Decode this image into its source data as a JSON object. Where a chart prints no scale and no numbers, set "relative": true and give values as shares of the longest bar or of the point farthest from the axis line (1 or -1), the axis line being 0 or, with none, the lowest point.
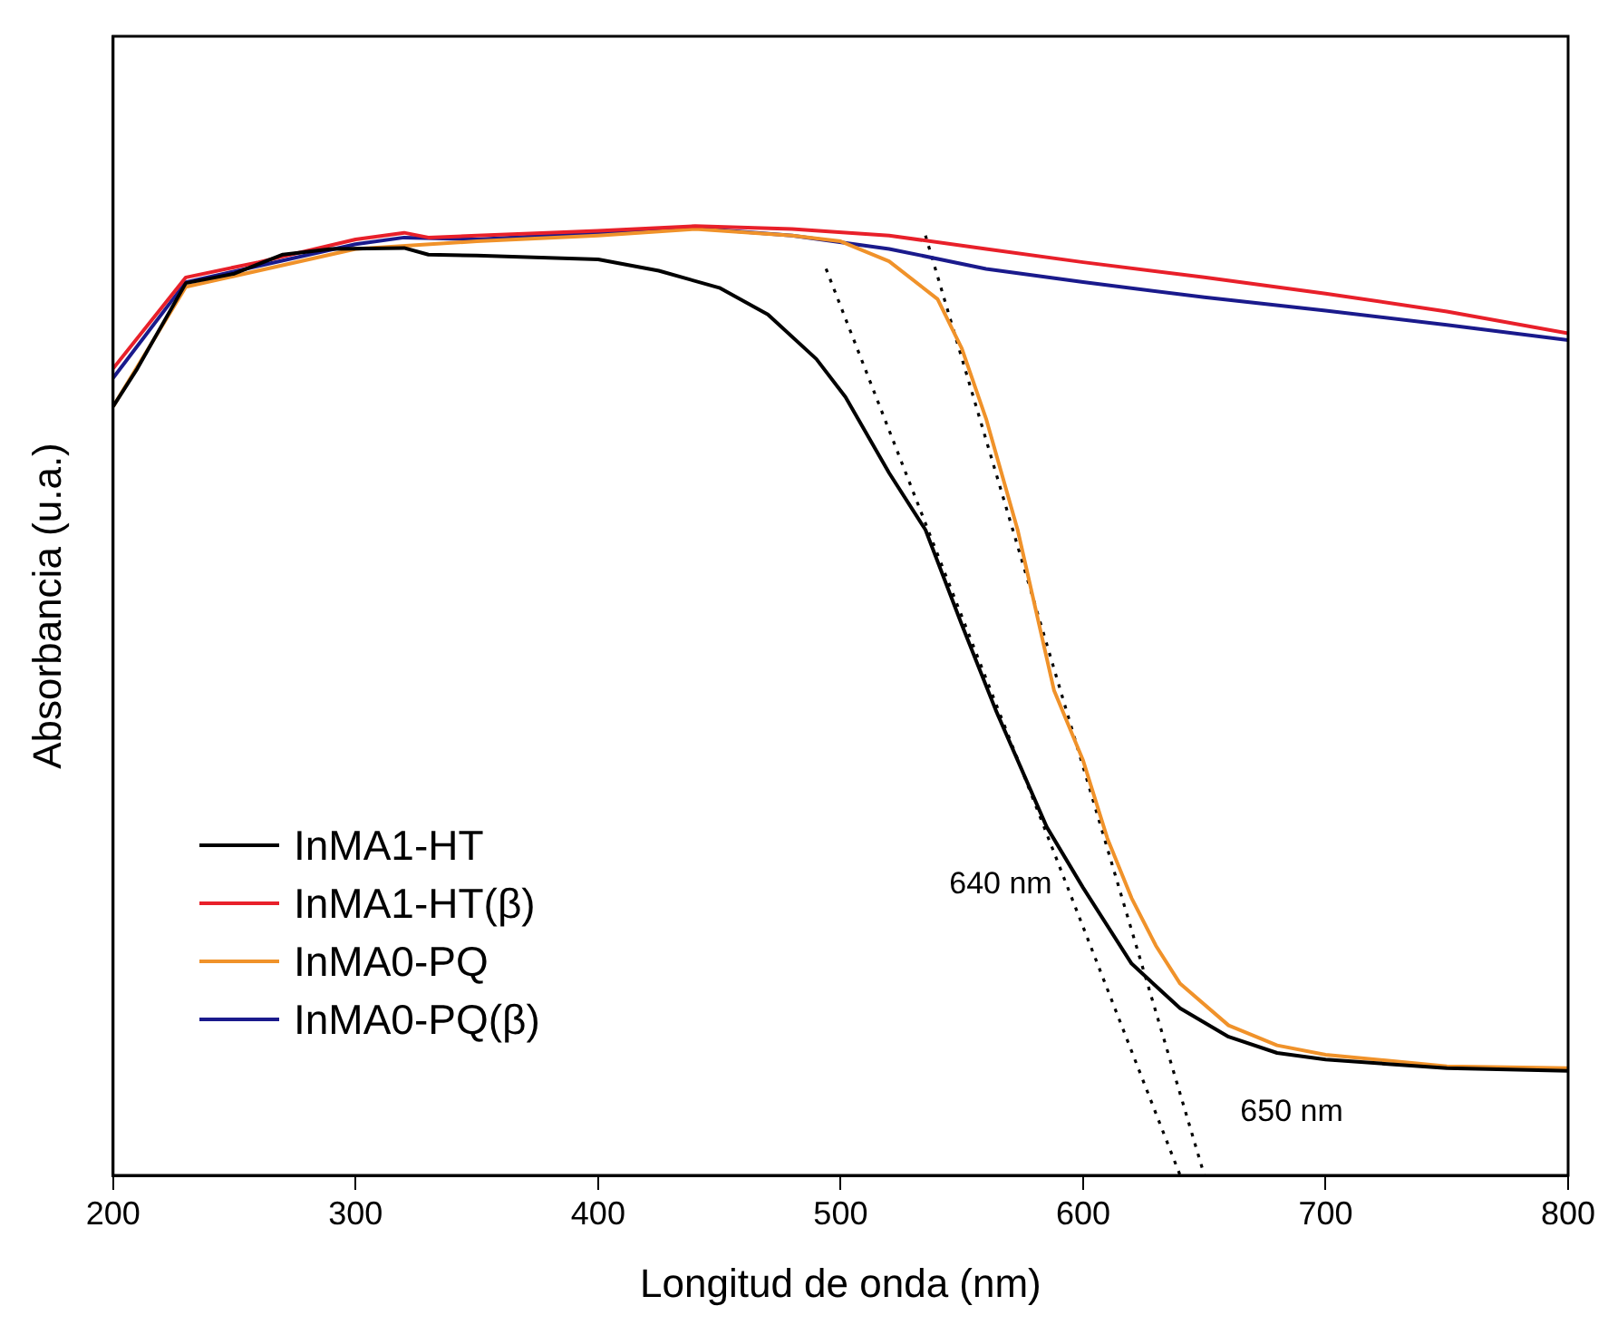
{
  "chart_data": {
    "type": "line",
    "xlabel": "Longitud de onda (nm)",
    "ylabel": "Absorbancia (u.a.)",
    "relative": true,
    "xlim": [
      200,
      800
    ],
    "xticks": [
      200,
      300,
      400,
      500,
      600,
      700,
      800
    ],
    "grid": false,
    "legend": "bottom left",
    "marker": "none",
    "line_style": "solid",
    "series": [
      {
        "name": "InMA1-HT",
        "color": "#000000",
        "x": [
          200,
          210,
          230,
          250,
          270,
          290,
          320,
          330,
          350,
          400,
          425,
          450,
          470,
          490,
          502,
          520,
          535,
          550,
          564,
          585,
          600,
          620,
          640,
          660,
          680,
          700,
          750,
          800
        ],
        "values": [
          0.81,
          0.85,
          0.94,
          0.95,
          0.97,
          0.976,
          0.977,
          0.97,
          0.969,
          0.965,
          0.953,
          0.935,
          0.907,
          0.86,
          0.82,
          0.74,
          0.68,
          0.58,
          0.49,
          0.367,
          0.303,
          0.223,
          0.176,
          0.146,
          0.129,
          0.122,
          0.113,
          0.11
        ]
      },
      {
        "name": "InMA1-HT(β)",
        "color": "#e8202a",
        "x": [
          200,
          230,
          260,
          300,
          320,
          330,
          350,
          400,
          440,
          480,
          520,
          560,
          600,
          650,
          700,
          750,
          800
        ],
        "values": [
          0.85,
          0.946,
          0.962,
          0.986,
          0.993,
          0.988,
          0.99,
          0.995,
          1,
          0.997,
          0.99,
          0.976,
          0.962,
          0.946,
          0.929,
          0.91,
          0.887
        ]
      },
      {
        "name": "InMA0-PQ",
        "color": "#f0922a",
        "x": [
          200,
          230,
          300,
          350,
          400,
          440,
          480,
          500,
          520,
          540,
          550,
          560,
          573,
          588,
          600,
          610,
          620,
          630,
          640,
          660,
          680,
          700,
          750,
          800
        ],
        "values": [
          0.81,
          0.936,
          0.976,
          0.984,
          0.99,
          0.997,
          0.99,
          0.984,
          0.963,
          0.923,
          0.871,
          0.797,
          0.68,
          0.511,
          0.437,
          0.355,
          0.292,
          0.242,
          0.202,
          0.158,
          0.137,
          0.127,
          0.115,
          0.113
        ]
      },
      {
        "name": "InMA0-PQ(β)",
        "color": "#1a1a8c",
        "x": [
          200,
          230,
          260,
          300,
          320,
          350,
          400,
          440,
          480,
          520,
          560,
          600,
          650,
          700,
          750,
          800
        ],
        "values": [
          0.84,
          0.941,
          0.958,
          0.981,
          0.988,
          0.986,
          0.993,
          0.998,
          0.99,
          0.976,
          0.955,
          0.941,
          0.925,
          0.911,
          0.896,
          0.88
        ]
      },
      {
        "color": "#000000",
        "line_style": "dotted",
        "x": [
          494,
          640
        ],
        "values": [
          0.955,
          0
        ]
      },
      {
        "color": "#000000",
        "line_style": "dotted",
        "x": [
          535,
          650
        ],
        "values": [
          0.99,
          0
        ]
      }
    ],
    "annotations": [
      "640 nm",
      "650 nm"
    ]
  }
}
